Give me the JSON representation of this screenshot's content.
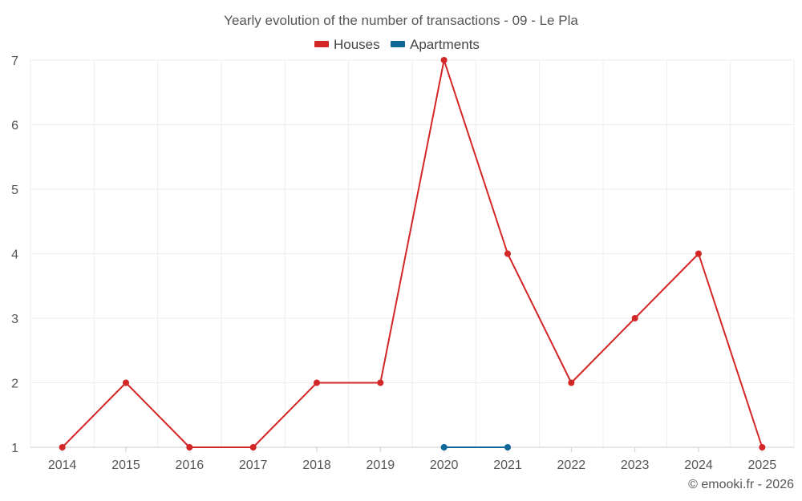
{
  "chart_data": {
    "type": "line",
    "title": "Yearly evolution of the number of transactions - 09 - Le Pla",
    "categories": [
      "2014",
      "2015",
      "2016",
      "2017",
      "2018",
      "2019",
      "2020",
      "2021",
      "2022",
      "2023",
      "2024",
      "2025"
    ],
    "ylim": [
      1,
      7
    ],
    "yticks": [
      "1",
      "2",
      "3",
      "4",
      "5",
      "6",
      "7"
    ],
    "grid": true,
    "legend_position": "top-center",
    "series": [
      {
        "name": "Houses",
        "color": "#d32626",
        "values": [
          1,
          2,
          1,
          1,
          2,
          2,
          7,
          4,
          2,
          3,
          4,
          1
        ]
      },
      {
        "name": "Apartments",
        "color": "#0f6699",
        "values": [
          null,
          null,
          null,
          null,
          null,
          null,
          1,
          1,
          null,
          null,
          null,
          null
        ]
      }
    ]
  },
  "credit": "© emooki.fr - 2026"
}
